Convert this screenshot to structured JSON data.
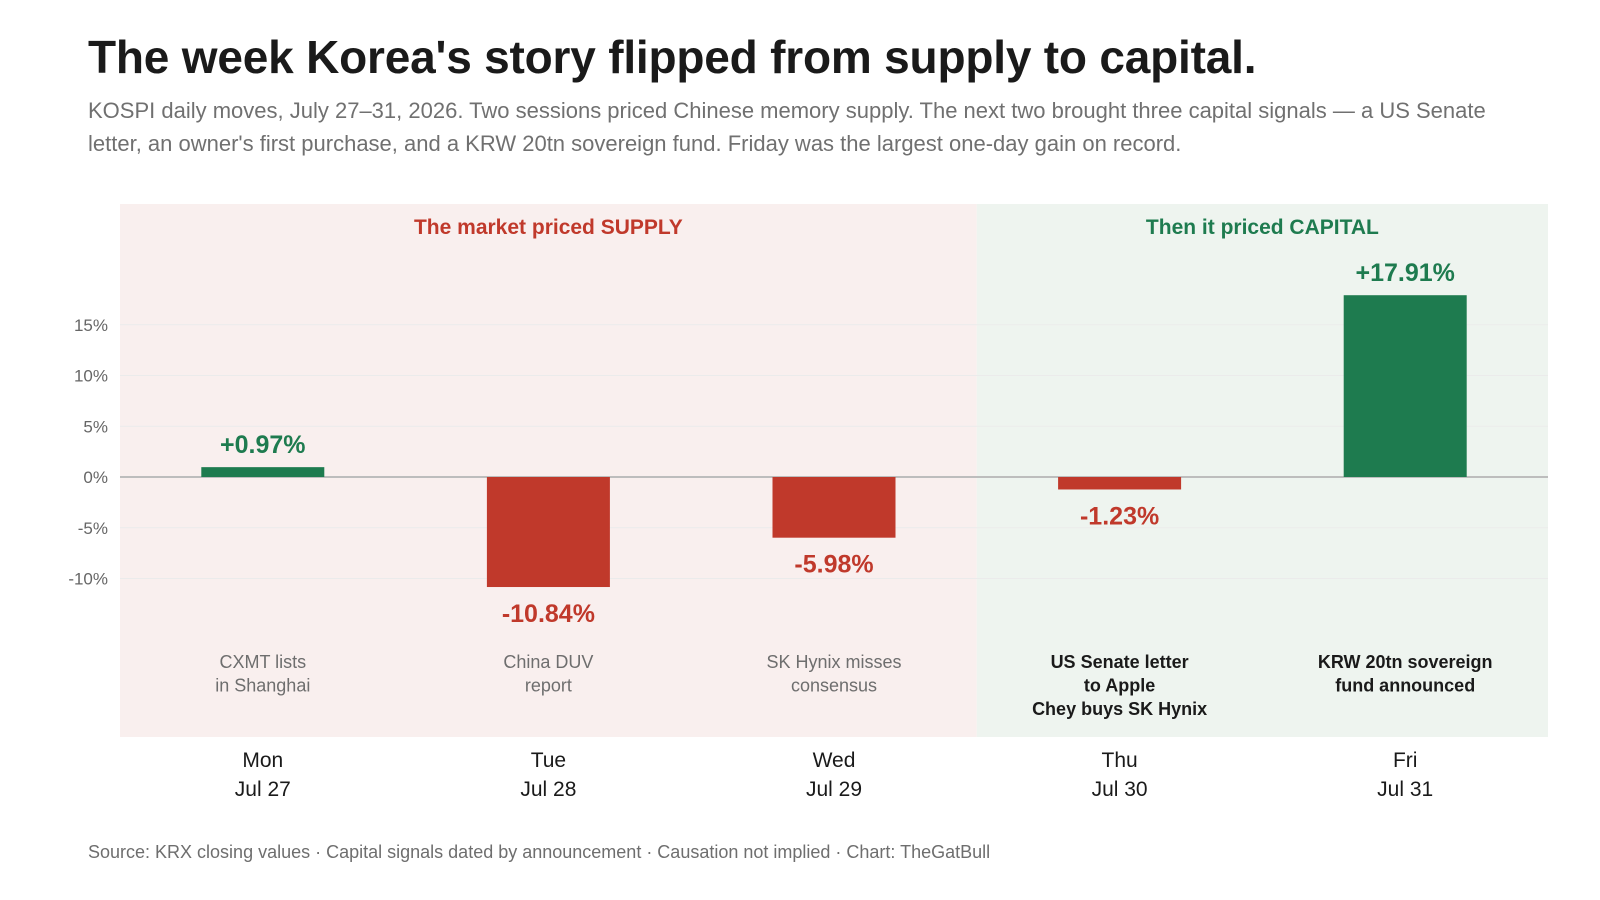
{
  "page": {
    "title": "The week Korea's story flipped from supply to capital.",
    "subtitle": "KOSPI daily moves, July 27–31, 2026. Two sessions priced Chinese memory supply. The next two brought three capital signals — a US Senate letter, an owner's first purchase, and a KRW 20tn sovereign fund. Friday was the largest one-day gain on record.",
    "source": "Source: KRX closing values  ·  Capital signals dated by announcement  ·  Causation not implied  ·  Chart: TheGatBull"
  },
  "colors": {
    "positive": "#1e7b4f",
    "negative": "#c0392b",
    "supply_bg": "#f9efee",
    "capital_bg": "#eef4ef",
    "axis_text": "#666666",
    "zero_line": "#bdbdbd",
    "grid": "#ebebeb"
  },
  "chart_data": {
    "type": "bar",
    "title": "",
    "xlabel": "",
    "ylabel": "",
    "ylim": [
      -15,
      20
    ],
    "yticks": [
      -10,
      -5,
      0,
      5,
      10,
      15
    ],
    "ytick_labels": [
      "-10%",
      "-5%",
      "0%",
      "5%",
      "10%",
      "15%"
    ],
    "grid": true,
    "categories": [
      "Mon Jul 27",
      "Tue Jul 28",
      "Wed Jul 29",
      "Thu Jul 30",
      "Fri Jul 31"
    ],
    "days": [
      "Mon",
      "Tue",
      "Wed",
      "Thu",
      "Fri"
    ],
    "dates": [
      "Jul 27",
      "Jul 28",
      "Jul 29",
      "Jul 30",
      "Jul 31"
    ],
    "values": [
      0.97,
      -10.84,
      -5.98,
      -1.23,
      17.91
    ],
    "value_labels": [
      "+0.97%",
      "-10.84%",
      "-5.98%",
      "-1.23%",
      "+17.91%"
    ],
    "annotations": [
      {
        "lines": [
          "CXMT lists",
          "in Shanghai"
        ],
        "emphasis": false
      },
      {
        "lines": [
          "China DUV",
          "report"
        ],
        "emphasis": false
      },
      {
        "lines": [
          "SK Hynix misses",
          "consensus"
        ],
        "emphasis": false
      },
      {
        "lines": [
          "US Senate letter",
          "to Apple",
          "Chey buys SK Hynix"
        ],
        "emphasis": true
      },
      {
        "lines": [
          "KRW 20tn sovereign",
          "fund announced"
        ],
        "emphasis": true
      }
    ],
    "regions": [
      {
        "label": "The market priced SUPPLY",
        "from_index": 0,
        "to_index": 2,
        "kind": "supply"
      },
      {
        "label": "Then it priced CAPITAL",
        "from_index": 3,
        "to_index": 4,
        "kind": "capital"
      }
    ]
  }
}
